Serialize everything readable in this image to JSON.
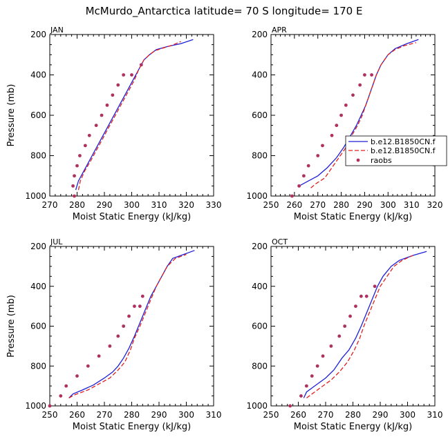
{
  "figure_title": "McMurdo_Antarctica  latitude= 70 S longitude= 170 E",
  "colors": {
    "model_1": "#1f1fd6",
    "model_2": "#e0201f",
    "obs": "#b03060"
  },
  "legend_entries": [
    "b.e12.B1850CN.f",
    "b.e12.B1850CN.f",
    "raobs"
  ],
  "chart_data": [
    {
      "type": "line",
      "panel": "JAN",
      "title": "JAN",
      "xlabel": "Moist Static Energy (kJ/kg)",
      "ylabel": "Pressure (mb)",
      "xlim": [
        270,
        330
      ],
      "ylim": [
        1000,
        200
      ],
      "x_ticks": [
        270,
        280,
        290,
        300,
        310,
        320,
        330
      ],
      "y_ticks": [
        200,
        400,
        600,
        800,
        1000
      ],
      "series": [
        {
          "name": "b.e12.B1850CN.f",
          "color": "#1f1fd6",
          "dashed": false,
          "marker": false,
          "points": [
            [
              279.5,
              970
            ],
            [
              280.5,
              925
            ],
            [
              282.5,
              875
            ],
            [
              284.5,
              825
            ],
            [
              286.5,
              775
            ],
            [
              288.5,
              725
            ],
            [
              290.5,
              675
            ],
            [
              292.5,
              625
            ],
            [
              294.5,
              575
            ],
            [
              296.5,
              525
            ],
            [
              298.5,
              475
            ],
            [
              300.5,
              425
            ],
            [
              302.5,
              375
            ],
            [
              304.5,
              325
            ],
            [
              306.5,
              300
            ],
            [
              309,
              275
            ],
            [
              313,
              260
            ],
            [
              318,
              245
            ],
            [
              322.5,
              225
            ]
          ]
        },
        {
          "name": "b.e12.B1850CN.f",
          "color": "#e0201f",
          "dashed": true,
          "marker": false,
          "points": [
            [
              280.5,
              970
            ],
            [
              281.2,
              925
            ],
            [
              282.8,
              875
            ],
            [
              285,
              825
            ],
            [
              287,
              775
            ],
            [
              289,
              725
            ],
            [
              291,
              675
            ],
            [
              293,
              625
            ],
            [
              295,
              575
            ],
            [
              297,
              525
            ],
            [
              299,
              475
            ],
            [
              301,
              425
            ],
            [
              302.5,
              375
            ],
            [
              304.5,
              325
            ],
            [
              306.5,
              300
            ],
            [
              308.5,
              280
            ],
            [
              312,
              265
            ],
            [
              315,
              252
            ],
            [
              318,
              235
            ]
          ]
        },
        {
          "name": "raobs",
          "color": "#b03060",
          "dashed": false,
          "marker": true,
          "points": [
            [
              279,
              1000
            ],
            [
              278.5,
              950
            ],
            [
              279,
              900
            ],
            [
              280,
              850
            ],
            [
              281,
              800
            ],
            [
              283,
              750
            ],
            [
              284.5,
              700
            ],
            [
              287,
              650
            ],
            [
              289,
              600
            ],
            [
              291,
              550
            ],
            [
              293,
              500
            ],
            [
              295,
              450
            ],
            [
              297,
              400
            ],
            [
              300,
              400
            ],
            [
              303.5,
              350
            ]
          ]
        }
      ]
    },
    {
      "type": "line",
      "panel": "APR",
      "title": "APR",
      "xlabel": "Moist Static Energy (kJ/kg)",
      "ylabel": "",
      "xlim": [
        250,
        320
      ],
      "ylim": [
        1000,
        200
      ],
      "x_ticks": [
        250,
        260,
        270,
        280,
        290,
        300,
        310,
        320
      ],
      "y_ticks": [
        200,
        400,
        600,
        800,
        1000
      ],
      "legend_position": "right",
      "series": [
        {
          "name": "b.e12.B1850CN.f",
          "color": "#1f1fd6",
          "dashed": false,
          "marker": false,
          "points": [
            [
              262,
              950
            ],
            [
              266,
              925
            ],
            [
              270,
              900
            ],
            [
              274,
              860
            ],
            [
              278,
              810
            ],
            [
              281,
              760
            ],
            [
              284,
              700
            ],
            [
              286.5,
              650
            ],
            [
              288.5,
              600
            ],
            [
              290.5,
              550
            ],
            [
              292,
              500
            ],
            [
              293.5,
              450
            ],
            [
              295,
              400
            ],
            [
              297,
              350
            ],
            [
              300,
              300
            ],
            [
              303,
              270
            ],
            [
              308,
              245
            ],
            [
              313,
              225
            ]
          ]
        },
        {
          "name": "b.e12.B1850CN.f",
          "color": "#e0201f",
          "dashed": true,
          "marker": false,
          "points": [
            [
              267,
              960
            ],
            [
              269,
              940
            ],
            [
              273,
              910
            ],
            [
              276,
              860
            ],
            [
              279,
              810
            ],
            [
              282,
              760
            ],
            [
              284.5,
              700
            ],
            [
              287,
              650
            ],
            [
              289,
              600
            ],
            [
              290.5,
              550
            ],
            [
              292,
              500
            ],
            [
              293.5,
              450
            ],
            [
              295,
              400
            ],
            [
              297,
              350
            ],
            [
              300,
              300
            ],
            [
              303,
              275
            ],
            [
              307,
              255
            ],
            [
              312,
              240
            ]
          ]
        },
        {
          "name": "raobs",
          "color": "#b03060",
          "dashed": false,
          "marker": true,
          "points": [
            [
              259,
              1000
            ],
            [
              262,
              950
            ],
            [
              264,
              900
            ],
            [
              266,
              850
            ],
            [
              270,
              800
            ],
            [
              272,
              750
            ],
            [
              276,
              700
            ],
            [
              278,
              650
            ],
            [
              280,
              600
            ],
            [
              282,
              550
            ],
            [
              285,
              500
            ],
            [
              288,
              450
            ],
            [
              290,
              400
            ],
            [
              293,
              400
            ]
          ]
        }
      ]
    },
    {
      "type": "line",
      "panel": "JUL",
      "title": "JUL",
      "xlabel": "Moist Static Energy (kJ/kg)",
      "ylabel": "Pressure (mb)",
      "xlim": [
        250,
        310
      ],
      "ylim": [
        1000,
        200
      ],
      "x_ticks": [
        250,
        260,
        270,
        280,
        290,
        300,
        310
      ],
      "y_ticks": [
        200,
        400,
        600,
        800,
        1000
      ],
      "series": [
        {
          "name": "b.e12.B1850CN.f",
          "color": "#1f1fd6",
          "dashed": false,
          "marker": false,
          "points": [
            [
              257,
              960
            ],
            [
              258.5,
              940
            ],
            [
              262,
              920
            ],
            [
              266,
              895
            ],
            [
              270,
              860
            ],
            [
              273,
              830
            ],
            [
              275,
              800
            ],
            [
              277,
              760
            ],
            [
              279,
              710
            ],
            [
              281,
              650
            ],
            [
              282.5,
              600
            ],
            [
              284,
              550
            ],
            [
              285.5,
              500
            ],
            [
              287,
              450
            ],
            [
              289,
              400
            ],
            [
              291,
              350
            ],
            [
              293,
              300
            ],
            [
              295,
              260
            ],
            [
              299,
              240
            ],
            [
              303,
              220
            ]
          ]
        },
        {
          "name": "b.e12.B1850CN.f",
          "color": "#e0201f",
          "dashed": true,
          "marker": false,
          "points": [
            [
              257,
              960
            ],
            [
              259,
              945
            ],
            [
              264,
              920
            ],
            [
              268,
              890
            ],
            [
              272,
              860
            ],
            [
              275,
              820
            ],
            [
              277.5,
              780
            ],
            [
              279.5,
              720
            ],
            [
              281,
              660
            ],
            [
              283,
              600
            ],
            [
              284.5,
              550
            ],
            [
              286,
              500
            ],
            [
              287.5,
              450
            ],
            [
              289,
              400
            ],
            [
              291,
              350
            ],
            [
              293,
              300
            ],
            [
              296,
              260
            ],
            [
              300,
              240
            ]
          ]
        },
        {
          "name": "raobs",
          "color": "#b03060",
          "dashed": false,
          "marker": true,
          "points": [
            [
              250,
              1000
            ],
            [
              254,
              950
            ],
            [
              256,
              900
            ],
            [
              260,
              850
            ],
            [
              264,
              800
            ],
            [
              268,
              750
            ],
            [
              272,
              700
            ],
            [
              275,
              650
            ],
            [
              277,
              600
            ],
            [
              279,
              550
            ],
            [
              281,
              500
            ],
            [
              283,
              500
            ],
            [
              284,
              450
            ]
          ]
        }
      ]
    },
    {
      "type": "line",
      "panel": "OCT",
      "title": "OCT",
      "xlabel": "Moist Static Energy (kJ/kg)",
      "ylabel": "",
      "xlim": [
        250,
        310
      ],
      "ylim": [
        1000,
        200
      ],
      "x_ticks": [
        250,
        260,
        270,
        280,
        290,
        300,
        310
      ],
      "y_ticks": [
        200,
        400,
        600,
        800,
        1000
      ],
      "series": [
        {
          "name": "b.e12.B1850CN.f",
          "color": "#1f1fd6",
          "dashed": false,
          "marker": false,
          "points": [
            [
              262,
              960
            ],
            [
              263,
              930
            ],
            [
              266,
              900
            ],
            [
              270,
              860
            ],
            [
              273,
              820
            ],
            [
              276,
              760
            ],
            [
              278.5,
              720
            ],
            [
              281,
              660
            ],
            [
              283,
              600
            ],
            [
              284.5,
              550
            ],
            [
              286,
              500
            ],
            [
              287.5,
              450
            ],
            [
              289,
              400
            ],
            [
              291,
              350
            ],
            [
              294,
              300
            ],
            [
              297,
              270
            ],
            [
              302,
              245
            ],
            [
              307,
              225
            ]
          ]
        },
        {
          "name": "b.e12.B1850CN.f",
          "color": "#e0201f",
          "dashed": true,
          "marker": false,
          "points": [
            [
              263,
              960
            ],
            [
              265,
              940
            ],
            [
              268,
              910
            ],
            [
              272,
              870
            ],
            [
              275,
              830
            ],
            [
              278,
              780
            ],
            [
              280.5,
              720
            ],
            [
              282.5,
              660
            ],
            [
              284,
              600
            ],
            [
              285.5,
              550
            ],
            [
              287,
              500
            ],
            [
              288.5,
              450
            ],
            [
              290,
              400
            ],
            [
              292.5,
              350
            ],
            [
              295,
              300
            ],
            [
              298,
              270
            ],
            [
              302,
              245
            ]
          ]
        },
        {
          "name": "raobs",
          "color": "#b03060",
          "dashed": false,
          "marker": true,
          "points": [
            [
              257,
              1000
            ],
            [
              261,
              950
            ],
            [
              263,
              900
            ],
            [
              265,
              850
            ],
            [
              267,
              800
            ],
            [
              269,
              750
            ],
            [
              272,
              700
            ],
            [
              275,
              650
            ],
            [
              277,
              600
            ],
            [
              279,
              550
            ],
            [
              281,
              500
            ],
            [
              283,
              450
            ],
            [
              285,
              450
            ],
            [
              288,
              400
            ]
          ]
        }
      ]
    }
  ]
}
